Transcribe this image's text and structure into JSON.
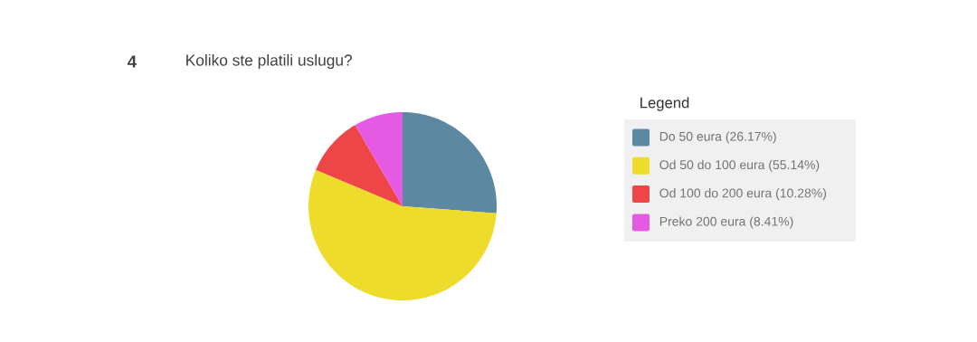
{
  "chart_data": {
    "type": "pie",
    "title": "Koliko ste platili uslugu?",
    "annotations": [
      "4"
    ],
    "legend_title": "Legend",
    "legend": "right",
    "categories": [
      "Do 50 eura (26.17%)",
      "Od 50 do 100 eura (55.14%)",
      "Od 100 do 200 eura (10.28%)",
      "Preko 200 eura (8.41%)"
    ],
    "values": [
      26.17,
      55.14,
      10.28,
      8.41
    ],
    "colors": [
      "#5c88a2",
      "#eedc2a",
      "#ee4646",
      "#e45ae2"
    ]
  }
}
